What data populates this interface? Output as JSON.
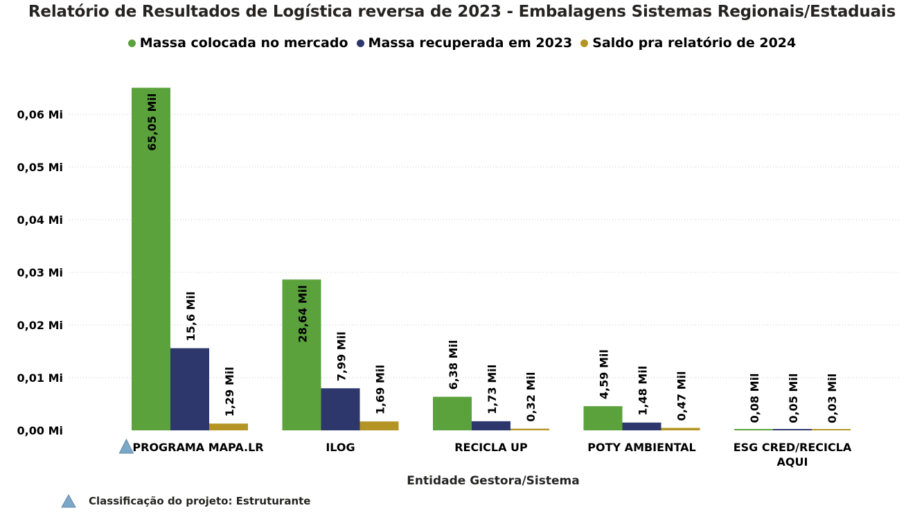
{
  "chart_data": {
    "type": "bar",
    "title": "Relatório de Resultados de Logística reversa de 2023 - Embalagens Sistemas Regionais/Estaduais",
    "xlabel": "Entidade Gestora/Sistema",
    "ylabel": "",
    "ylim": [
      0,
      0.065
    ],
    "y_ticks": [
      {
        "value": 0.0,
        "label": "0,00 Mi"
      },
      {
        "value": 0.01,
        "label": "0,01 Mi"
      },
      {
        "value": 0.02,
        "label": "0,02 Mi"
      },
      {
        "value": 0.03,
        "label": "0,03 Mi"
      },
      {
        "value": 0.04,
        "label": "0,04 Mi"
      },
      {
        "value": 0.05,
        "label": "0,05 Mi"
      },
      {
        "value": 0.06,
        "label": "0,06 Mi"
      }
    ],
    "grid": true,
    "legend_position": "top-center",
    "categories": [
      {
        "lines": [
          "PROGRAMA MAPA.LR"
        ],
        "marker": true
      },
      {
        "lines": [
          "ILOG"
        ],
        "marker": false
      },
      {
        "lines": [
          "RECICLA UP"
        ],
        "marker": false
      },
      {
        "lines": [
          "POTY AMBIENTAL"
        ],
        "marker": false
      },
      {
        "lines": [
          "ESG CRED/RECICLA",
          "AQUI"
        ],
        "marker": false
      }
    ],
    "series": [
      {
        "name": "Massa colocada no mercado",
        "color": "#5BA23D",
        "values": [
          0.06505,
          0.02864,
          0.00638,
          0.00459,
          8e-05
        ],
        "labels": [
          "65,05 Mil",
          "28,64 Mil",
          "6,38 Mil",
          "4,59 Mil",
          "0,08 Mil"
        ]
      },
      {
        "name": "Massa recuperada em 2023",
        "color": "#2D376B",
        "values": [
          0.0156,
          0.00799,
          0.00173,
          0.00148,
          5e-05
        ],
        "labels": [
          "15,6 Mil",
          "7,99 Mil",
          "1,73 Mil",
          "1,48 Mil",
          "0,05 Mil"
        ]
      },
      {
        "name": "Saldo pra relatório de 2024",
        "color": "#B49424",
        "values": [
          0.00129,
          0.00169,
          0.00032,
          0.00047,
          3e-05
        ],
        "labels": [
          "1,29 Mil",
          "1,69 Mil",
          "0,32 Mil",
          "0,47 Mil",
          "0,03 Mil"
        ]
      }
    ]
  },
  "marker": {
    "icon": "triangle-icon",
    "color": "#7BA7C9",
    "label": "Classificação do projeto: Estruturante"
  }
}
